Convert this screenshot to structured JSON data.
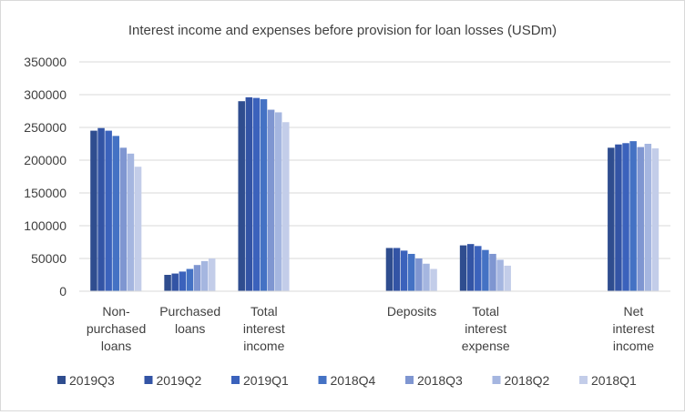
{
  "chart_data": {
    "type": "bar",
    "title": "Interest income and expenses before provision for loan losses (USDm)",
    "xlabel": "",
    "ylabel": "",
    "ylim": [
      0,
      350000
    ],
    "yticks": [
      "0",
      "50000",
      "100000",
      "150000",
      "200000",
      "250000",
      "300000",
      "350000"
    ],
    "grid": true,
    "legend_position": "bottom",
    "category_slots": 8,
    "categories": [
      {
        "slot": 0,
        "label": [
          "Non-",
          "purchased",
          "loans"
        ]
      },
      {
        "slot": 1,
        "label": [
          "Purchased",
          "loans"
        ]
      },
      {
        "slot": 2,
        "label": [
          "Total",
          "interest",
          "income"
        ]
      },
      {
        "slot": 4,
        "label": [
          "Deposits"
        ]
      },
      {
        "slot": 5,
        "label": [
          "Total",
          "interest",
          "expense"
        ]
      },
      {
        "slot": 7,
        "label": [
          "Net",
          "interest",
          "income"
        ]
      }
    ],
    "series": [
      {
        "name": "2019Q3",
        "color": "#2f4d8f",
        "values": [
          245000,
          25000,
          290000,
          66000,
          70000,
          219000
        ]
      },
      {
        "name": "2019Q2",
        "color": "#3354a5",
        "values": [
          249000,
          27000,
          296000,
          66000,
          72000,
          224000
        ]
      },
      {
        "name": "2019Q1",
        "color": "#3b62bc",
        "values": [
          245000,
          30000,
          295000,
          62000,
          69000,
          226000
        ]
      },
      {
        "name": "2018Q4",
        "color": "#4472c4",
        "values": [
          237000,
          34000,
          293000,
          57000,
          63000,
          229000
        ]
      },
      {
        "name": "2018Q3",
        "color": "#7f96d1",
        "values": [
          219000,
          40000,
          277000,
          50000,
          57000,
          220000
        ]
      },
      {
        "name": "2018Q2",
        "color": "#a5b6e0",
        "values": [
          210000,
          46000,
          273000,
          42000,
          48000,
          225000
        ]
      },
      {
        "name": "2018Q1",
        "color": "#c3cde9",
        "values": [
          190000,
          50000,
          258000,
          34000,
          39000,
          218000
        ]
      }
    ]
  }
}
